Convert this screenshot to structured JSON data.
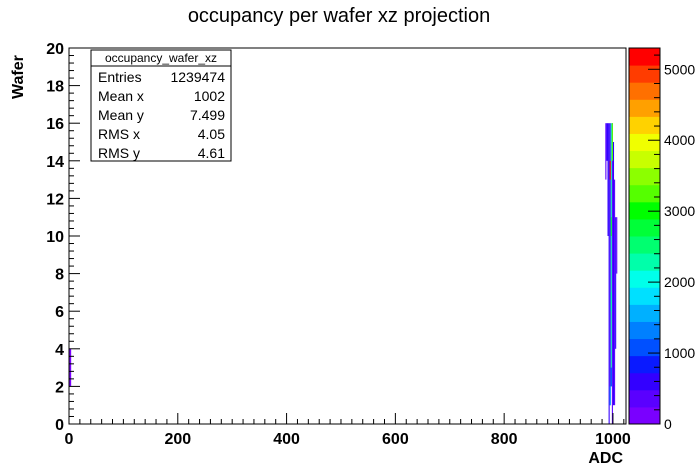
{
  "chart_data": {
    "type": "heatmap",
    "title": "occupancy per wafer xz projection",
    "xlabel": "ADC",
    "ylabel": "Wafer",
    "xlim": [
      0,
      1024
    ],
    "ylim": [
      0,
      20
    ],
    "x_ticks": [
      "0",
      "200",
      "400",
      "600",
      "800",
      "1000"
    ],
    "y_ticks": [
      "0",
      "2",
      "4",
      "6",
      "8",
      "10",
      "12",
      "14",
      "16",
      "18",
      "20"
    ],
    "z_ticks": [
      "0",
      "1000",
      "2000",
      "3000",
      "4000",
      "5000"
    ],
    "zlim": [
      0,
      5300
    ],
    "palette": [
      "#7a00ff",
      "#5a00ff",
      "#3300ff",
      "#0a1aff",
      "#0050ff",
      "#0080ff",
      "#00b0ff",
      "#00e0ff",
      "#00ffea",
      "#00ffaa",
      "#00ff70",
      "#00ff38",
      "#00ff00",
      "#55ff00",
      "#8cff00",
      "#c8ff00",
      "#f0ff00",
      "#ffd200",
      "#ffa000",
      "#ff7000",
      "#ff3c00",
      "#ff0000"
    ],
    "stats": {
      "title": "occupancy_wafer_xz",
      "rows": [
        {
          "label": "Entries",
          "value": "1239474"
        },
        {
          "label": "Mean x",
          "value": "1002"
        },
        {
          "label": "Mean y",
          "value": "7.499"
        },
        {
          "label": "RMS x",
          "value": "4.05"
        },
        {
          "label": "RMS y",
          "value": "4.61"
        }
      ]
    },
    "cells": [
      {
        "x0": 0,
        "x1": 4,
        "y0": 2,
        "y1": 4,
        "z": 200
      },
      {
        "x0": 986,
        "x1": 988,
        "y0": 13,
        "y1": 16,
        "z": 300
      },
      {
        "x0": 988,
        "x1": 990,
        "y0": 14,
        "y1": 16,
        "z": 500
      },
      {
        "x0": 990,
        "x1": 992,
        "y0": 10,
        "y1": 16,
        "z": 600
      },
      {
        "x0": 992,
        "x1": 994,
        "y0": 0,
        "y1": 16,
        "z": 500
      },
      {
        "x0": 994,
        "x1": 996,
        "y0": 1,
        "y1": 16,
        "z": 700
      },
      {
        "x0": 996,
        "x1": 998,
        "y0": 2,
        "y1": 16,
        "z": 2400
      },
      {
        "x0": 998,
        "x1": 1000,
        "y0": 0,
        "y1": 16,
        "z": 300
      },
      {
        "x0": 1000,
        "x1": 1002,
        "y0": 1,
        "y1": 15,
        "z": 500
      },
      {
        "x0": 1002,
        "x1": 1004,
        "y0": 1,
        "y1": 13,
        "z": 300
      },
      {
        "x0": 1004,
        "x1": 1006,
        "y0": 4,
        "y1": 11,
        "z": 500
      },
      {
        "x0": 1006,
        "x1": 1008,
        "y0": 8,
        "y1": 11,
        "z": 300
      },
      {
        "x0": 994,
        "x1": 996,
        "y0": 13,
        "y1": 14,
        "z": 5300
      },
      {
        "x0": 996,
        "x1": 998,
        "y0": 10,
        "y1": 11,
        "z": 2800
      },
      {
        "x0": 998,
        "x1": 1000,
        "y0": 14,
        "y1": 16,
        "z": 3300
      },
      {
        "x0": 996,
        "x1": 998,
        "y0": 6,
        "y1": 7,
        "z": 2200
      },
      {
        "x0": 996,
        "x1": 998,
        "y0": 2,
        "y1": 3,
        "z": 1100
      },
      {
        "x0": 994,
        "x1": 996,
        "y0": 1,
        "y1": 2,
        "z": 1500
      }
    ]
  }
}
